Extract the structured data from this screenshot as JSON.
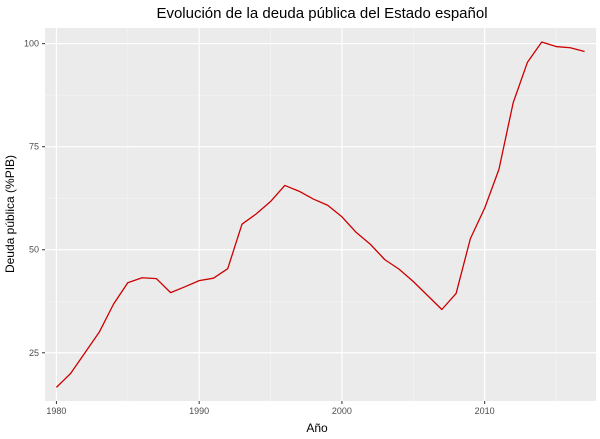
{
  "chart_data": {
    "type": "line",
    "title": "Evolución de la deuda pública del Estado español",
    "xlabel": "Año",
    "ylabel": "Deuda pública (%PIB)",
    "xlim": [
      1979.2,
      2017.8
    ],
    "ylim": [
      13.3,
      103.8
    ],
    "x_ticks": [
      1980,
      1990,
      2000,
      2010
    ],
    "y_ticks": [
      25,
      50,
      75,
      100
    ],
    "grid": true,
    "panel_background": "#ebebeb",
    "series": [
      {
        "color": "#cc0000",
        "x": [
          1980,
          1981,
          1982,
          1983,
          1984,
          1985,
          1986,
          1987,
          1988,
          1989,
          1990,
          1991,
          1992,
          1993,
          1994,
          1995,
          1996,
          1997,
          1998,
          1999,
          2000,
          2001,
          2002,
          2003,
          2004,
          2005,
          2006,
          2007,
          2008,
          2009,
          2010,
          2011,
          2012,
          2013,
          2014,
          2015,
          2016,
          2017
        ],
        "y": [
          16.6,
          20.0,
          25.0,
          30.0,
          36.8,
          42.0,
          43.2,
          43.0,
          39.6,
          41.0,
          42.5,
          43.1,
          45.4,
          56.2,
          58.7,
          61.7,
          65.6,
          64.2,
          62.3,
          60.8,
          58.0,
          54.2,
          51.3,
          47.6,
          45.3,
          42.3,
          38.9,
          35.5,
          39.4,
          52.7,
          60.1,
          69.5,
          85.7,
          95.5,
          100.4,
          99.3,
          99.0,
          98.1
        ]
      }
    ]
  }
}
